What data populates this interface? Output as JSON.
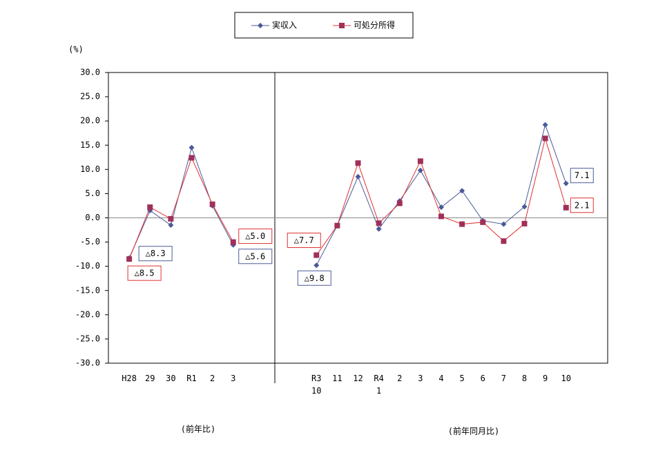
{
  "chart_data": {
    "type": "line",
    "y_unit_label": "(%)",
    "subtitles": [
      "(前年比)",
      "(前年同月比)"
    ],
    "categories": [
      null,
      "H28",
      "29",
      "30",
      "R1",
      "2",
      "3",
      null,
      null,
      null,
      "R3\n10",
      "11",
      "12",
      "R4\n1",
      "2",
      "3",
      "4",
      "5",
      "6",
      "7",
      "8",
      "9",
      "10",
      null,
      null
    ],
    "series": [
      {
        "name": "実収入",
        "color": "#4a5a99",
        "marker_color": "#4a5a99",
        "marker": "diamond",
        "values": [
          null,
          -8.3,
          1.5,
          -1.5,
          14.5,
          2.5,
          -5.6,
          null,
          null,
          null,
          -9.8,
          -1.6,
          8.5,
          -2.3,
          3.5,
          9.8,
          2.2,
          5.6,
          -0.6,
          -1.3,
          2.3,
          19.2,
          7.1,
          null,
          null
        ],
        "value_labels": [
          null,
          "△8.3",
          null,
          null,
          null,
          null,
          "△5.6",
          null,
          null,
          null,
          "△9.8",
          null,
          null,
          null,
          null,
          null,
          null,
          null,
          null,
          null,
          null,
          null,
          "7.1",
          null,
          null
        ]
      },
      {
        "name": "可処分所得",
        "color": "#e03030",
        "marker_color": "#a0305a",
        "marker": "square",
        "values": [
          null,
          -8.5,
          2.2,
          -0.2,
          12.4,
          2.8,
          -5.0,
          null,
          null,
          null,
          -7.7,
          -1.6,
          11.3,
          -1.1,
          3.0,
          11.7,
          0.3,
          -1.3,
          -0.9,
          -4.8,
          -1.2,
          16.4,
          2.1,
          null,
          null
        ],
        "value_labels": [
          null,
          "△8.5",
          null,
          null,
          null,
          null,
          "△5.0",
          null,
          null,
          null,
          "△7.7",
          null,
          null,
          null,
          null,
          null,
          null,
          null,
          null,
          null,
          null,
          null,
          "2.1",
          null,
          null
        ]
      }
    ],
    "ylim": [
      -30,
      30
    ],
    "yticks": [
      {
        "value": 30,
        "label": "30.0"
      },
      {
        "value": 25,
        "label": "25.0"
      },
      {
        "value": 20,
        "label": "20.0"
      },
      {
        "value": 15,
        "label": "15.0"
      },
      {
        "value": 10,
        "label": "10.0"
      },
      {
        "value": 5,
        "label": "5.0"
      },
      {
        "value": 0,
        "label": "0.0"
      },
      {
        "value": -5,
        "label": "-5.0"
      },
      {
        "value": -10,
        "label": "-10.0"
      },
      {
        "value": -15,
        "label": "-15.0"
      },
      {
        "value": -20,
        "label": "-20.0"
      },
      {
        "value": -25,
        "label": "-25.0"
      },
      {
        "value": -30,
        "label": "-30.0"
      }
    ],
    "negative_tick_color": "#c00000",
    "legend": "top"
  }
}
